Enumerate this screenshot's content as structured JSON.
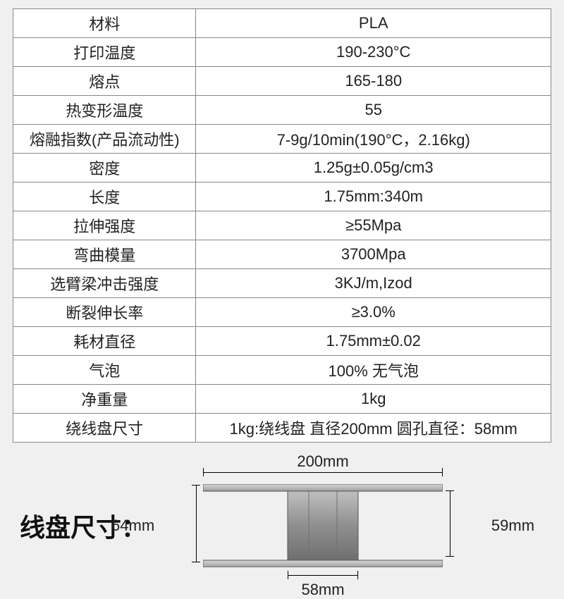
{
  "table": {
    "rows": [
      {
        "label": "材料",
        "value": "PLA"
      },
      {
        "label": "打印温度",
        "value": "190-230°C"
      },
      {
        "label": "熔点",
        "value": "165-180"
      },
      {
        "label": "热变形温度",
        "value": "55"
      },
      {
        "label": "熔融指数(产品流动性)",
        "value": "7-9g/10min(190°C，2.16kg)"
      },
      {
        "label": "密度",
        "value": "1.25g±0.05g/cm3"
      },
      {
        "label": "长度",
        "value": "1.75mm:340m"
      },
      {
        "label": "拉伸强度",
        "value": "≥55Mpa"
      },
      {
        "label": "弯曲模量",
        "value": "3700Mpa"
      },
      {
        "label": "选臂梁冲击强度",
        "value": "3KJ/m,Izod"
      },
      {
        "label": "断裂伸长率",
        "value": "≥3.0%"
      },
      {
        "label": "耗材直径",
        "value": "1.75mm±0.02"
      },
      {
        "label": "气泡",
        "value": "100% 无气泡"
      },
      {
        "label": "净重量",
        "value": "1kg"
      },
      {
        "label": "绕线盘尺寸",
        "value": "1kg:绕线盘 直径200mm  圆孔直径：58mm"
      }
    ]
  },
  "spool": {
    "title": "线盘尺寸：",
    "dims": {
      "top": "200mm",
      "left": "64mm",
      "right": "59mm",
      "bottom": "58mm"
    },
    "colors": {
      "flange_light": "#c8c8c8",
      "flange_dark": "#9a9a9a",
      "hub_light": "#b0b0b0",
      "hub_dark": "#7e7e7e",
      "edge": "#555"
    }
  }
}
